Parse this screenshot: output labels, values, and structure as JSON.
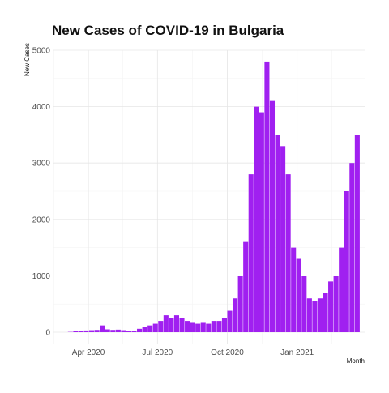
{
  "chart_data": {
    "type": "bar",
    "title": "New Cases of COVID-19 in Bulgaria",
    "xlabel": "Month",
    "ylabel": "New Cases",
    "bar_color": "#a020f0",
    "grid": true,
    "ylim": [
      0,
      5000
    ],
    "y_ticks": [
      0,
      1000,
      2000,
      3000,
      4000,
      5000
    ],
    "y_tick_labels": [
      "0",
      "1000",
      "2000",
      "3000",
      "4000",
      "5000"
    ],
    "xlim": [
      "2020-02-15",
      "2021-03-31"
    ],
    "x_ticks": [
      "2020-04-01",
      "2020-07-01",
      "2020-10-01",
      "2021-01-01"
    ],
    "x_tick_labels": [
      "Apr 2020",
      "Jul 2020",
      "Oct 2020",
      "Jan 2021"
    ],
    "series": [
      {
        "x": [
          "2020-03-08",
          "2020-03-15",
          "2020-03-22",
          "2020-03-29",
          "2020-04-05",
          "2020-04-12",
          "2020-04-19",
          "2020-04-26",
          "2020-05-03",
          "2020-05-10",
          "2020-05-17",
          "2020-05-24",
          "2020-05-31",
          "2020-06-07",
          "2020-06-14",
          "2020-06-21",
          "2020-06-28",
          "2020-07-05",
          "2020-07-12",
          "2020-07-19",
          "2020-07-26",
          "2020-08-02",
          "2020-08-09",
          "2020-08-16",
          "2020-08-23",
          "2020-08-30",
          "2020-09-06",
          "2020-09-13",
          "2020-09-20",
          "2020-09-27",
          "2020-10-04",
          "2020-10-11",
          "2020-10-18",
          "2020-10-25",
          "2020-11-01",
          "2020-11-08",
          "2020-11-15",
          "2020-11-22",
          "2020-11-29",
          "2020-12-06",
          "2020-12-13",
          "2020-12-20",
          "2020-12-27",
          "2021-01-03",
          "2021-01-10",
          "2021-01-17",
          "2021-01-24",
          "2021-01-31",
          "2021-02-07",
          "2021-02-14",
          "2021-02-21",
          "2021-02-28",
          "2021-03-07",
          "2021-03-14",
          "2021-03-21"
        ],
        "values": [
          5,
          15,
          25,
          30,
          35,
          40,
          120,
          50,
          40,
          45,
          35,
          20,
          15,
          60,
          100,
          120,
          150,
          200,
          300,
          250,
          300,
          250,
          200,
          180,
          150,
          180,
          150,
          200,
          200,
          250,
          380,
          600,
          1000,
          1600,
          2800,
          4000,
          3900,
          4800,
          4100,
          3500,
          3300,
          2800,
          1500,
          1300,
          1000,
          600,
          550,
          600,
          700,
          900,
          1000,
          1500,
          2500,
          3000,
          3500
        ]
      }
    ]
  }
}
